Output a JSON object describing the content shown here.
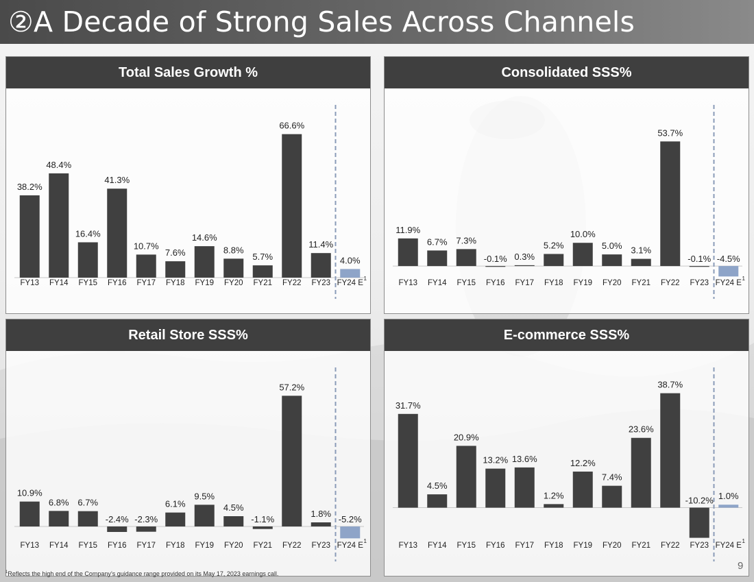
{
  "title": {
    "icon": "②",
    "text": "A Decade of Strong Sales Across Channels"
  },
  "footnote": {
    "marker": "1",
    "text": "Reflects the high end of the Company’s guidance range provided on its May 17, 2023 earnings call."
  },
  "page_number": "9",
  "colors": {
    "bar_actual": "#404040",
    "bar_estimate": "#8ea4c8",
    "divider": "#8a9bb8",
    "header_bg": "#3f3f3f"
  },
  "chart_data": [
    {
      "id": "total-sales-growth",
      "type": "bar",
      "title": "Total Sales Growth %",
      "categories": [
        "FY13",
        "FY14",
        "FY15",
        "FY16",
        "FY17",
        "FY18",
        "FY19",
        "FY20",
        "FY21",
        "FY22",
        "FY23",
        "FY24 E"
      ],
      "values": [
        38.2,
        48.4,
        16.4,
        41.3,
        10.7,
        7.6,
        14.6,
        8.8,
        5.7,
        66.6,
        11.4,
        4.0
      ],
      "labels": [
        "38.2%",
        "48.4%",
        "16.4%",
        "41.3%",
        "10.7%",
        "7.6%",
        "14.6%",
        "8.8%",
        "5.7%",
        "66.6%",
        "11.4%",
        "4.0%"
      ],
      "estimate_index": 11,
      "estimate_footnote": "1",
      "ylim": [
        0,
        70
      ]
    },
    {
      "id": "consolidated-sss",
      "type": "bar",
      "title": "Consolidated SSS%",
      "categories": [
        "FY13",
        "FY14",
        "FY15",
        "FY16",
        "FY17",
        "FY18",
        "FY19",
        "FY20",
        "FY21",
        "FY22",
        "FY23",
        "FY24 E"
      ],
      "values": [
        11.9,
        6.7,
        7.3,
        -0.1,
        0.3,
        5.2,
        10.0,
        5.0,
        3.1,
        53.7,
        -0.1,
        -4.5
      ],
      "labels": [
        "11.9%",
        "6.7%",
        "7.3%",
        "-0.1%",
        "0.3%",
        "5.2%",
        "10.0%",
        "5.0%",
        "3.1%",
        "53.7%",
        "-0.1%",
        "-4.5%"
      ],
      "estimate_index": 11,
      "estimate_footnote": "1",
      "ylim": [
        -5,
        60
      ]
    },
    {
      "id": "retail-store-sss",
      "type": "bar",
      "title": "Retail Store SSS%",
      "categories": [
        "FY13",
        "FY14",
        "FY15",
        "FY16",
        "FY17",
        "FY18",
        "FY19",
        "FY20",
        "FY21",
        "FY22",
        "FY23",
        "FY24 E"
      ],
      "values": [
        10.9,
        6.8,
        6.7,
        -2.4,
        -2.3,
        6.1,
        9.5,
        4.5,
        -1.1,
        57.2,
        1.8,
        -5.2
      ],
      "labels": [
        "10.9%",
        "6.8%",
        "6.7%",
        "-2.4%",
        "-2.3%",
        "6.1%",
        "9.5%",
        "4.5%",
        "-1.1%",
        "57.2%",
        "1.8%",
        "-5.2%"
      ],
      "estimate_index": 11,
      "estimate_footnote": "1",
      "ylim": [
        -6,
        60
      ]
    },
    {
      "id": "ecommerce-sss",
      "type": "bar",
      "title": "E-commerce SSS%",
      "categories": [
        "FY13",
        "FY14",
        "FY15",
        "FY16",
        "FY17",
        "FY18",
        "FY19",
        "FY20",
        "FY21",
        "FY22",
        "FY23",
        "FY24 E"
      ],
      "values": [
        31.7,
        4.5,
        20.9,
        13.2,
        13.6,
        1.2,
        12.2,
        7.4,
        23.6,
        38.7,
        -10.2,
        1.0
      ],
      "labels": [
        "31.7%",
        "4.5%",
        "20.9%",
        "13.2%",
        "13.6%",
        "1.2%",
        "12.2%",
        "7.4%",
        "23.6%",
        "38.7%",
        "-10.2%",
        "1.0%"
      ],
      "estimate_index": 11,
      "estimate_footnote": "1",
      "ylim": [
        -11,
        40
      ]
    }
  ]
}
